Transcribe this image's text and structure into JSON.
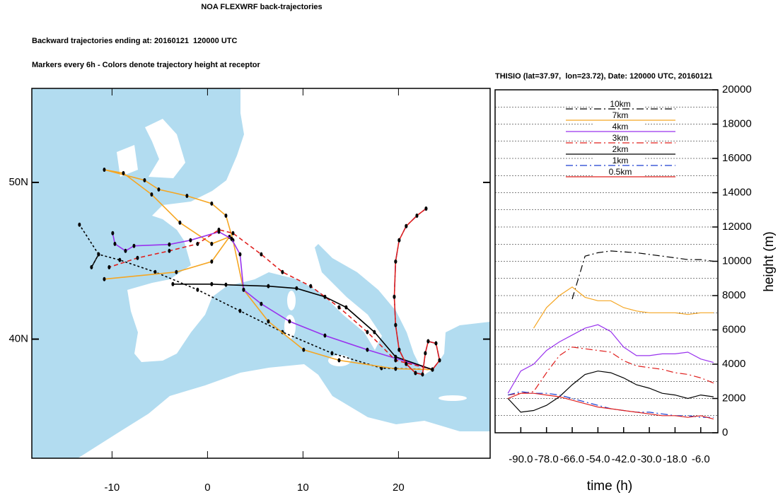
{
  "chart_data": [
    {
      "type": "trajectory-map",
      "title": "NOA FLEXWRF back-trajectories",
      "subtitle": "Backward trajectories ending at: 20160121  120000 UTC",
      "note": "Markers every 6h - Colors denote trajectory height at receptor",
      "xlim": [
        -18.4,
        29.6
      ],
      "ylim": [
        32.4,
        56
      ],
      "xticks": [
        -10,
        0,
        10,
        20
      ],
      "yticks": [
        {
          "value": 40,
          "label": "40N"
        },
        {
          "value": 50,
          "label": "50N"
        }
      ],
      "series": [
        {
          "color": "#000000",
          "dash": "dotted",
          "x": [
            23.56,
            18.22,
            13.04,
            7.85,
            3.41,
            -1.04,
            -5.48,
            -9.19,
            -11.41,
            -12.15,
            -11.41,
            -13.41
          ],
          "y": [
            38.06,
            38.15,
            39.1,
            40.45,
            41.8,
            43.15,
            44.28,
            45.05,
            45.41,
            44.59,
            45.41,
            47.3
          ]
        },
        {
          "color": "#f5a623",
          "dash": "solid",
          "x": [
            23.56,
            19.7,
            13.78,
            10.07,
            6.37,
            3.78,
            2.67,
            1.93,
            0.44,
            -2.15,
            -5.11,
            -6.59,
            -10.81,
            -8.81,
            -5.85,
            -2.89,
            0.44,
            2.3,
            0.44,
            -3.26,
            -10.81
          ],
          "y": [
            38.06,
            38.11,
            38.65,
            39.32,
            41.13,
            43.15,
            46.31,
            47.88,
            48.65,
            49.14,
            49.55,
            50.14,
            50.81,
            50.59,
            49.23,
            47.43,
            46.08,
            46.53,
            44.95,
            44.28,
            43.83
          ]
        },
        {
          "color": "#9933ee",
          "dash": "solid",
          "x": [
            23.56,
            16.74,
            12.3,
            8.59,
            5.63,
            3.78,
            3.41,
            2.52,
            1.19,
            -1.78,
            -4.0,
            -7.7,
            -8.59,
            -9.7,
            -9.93
          ],
          "y": [
            38.06,
            39.32,
            40.23,
            41.13,
            42.25,
            43.15,
            45.41,
            46.4,
            46.85,
            46.31,
            46.04,
            45.95,
            45.63,
            46.08,
            46.76
          ]
        },
        {
          "color": "#e0201e",
          "dash": "dashed",
          "x": [
            23.56,
            19.7,
            16.74,
            13.78,
            10.81,
            7.85,
            5.63,
            2.67,
            1.19,
            -1.04,
            -4.0,
            -7.33,
            -10.3
          ],
          "y": [
            38.06,
            38.65,
            40.45,
            42.03,
            43.38,
            44.28,
            45.41,
            46.76,
            46.98,
            46.08,
            45.63,
            45.18,
            44.59
          ]
        },
        {
          "color": "#000000",
          "dash": "solid",
          "x": [
            23.56,
            19.7,
            17.48,
            14.52,
            12.3,
            9.33,
            6.37,
            1.93,
            0.44,
            -3.63
          ],
          "y": [
            38.06,
            38.87,
            40.45,
            42.03,
            42.7,
            43.24,
            43.38,
            43.47,
            43.51,
            43.51
          ]
        },
        {
          "color": "#1a3fd0",
          "dash": "dashdot",
          "x": [
            23.56,
            24.3,
            23.93,
            23.11,
            22.81,
            22.52,
            21.78,
            20.81,
            20.07,
            19.7,
            19.56,
            19.7,
            20.07,
            20.81,
            21.93,
            22.89
          ],
          "y": [
            38.06,
            38.65,
            39.73,
            39.86,
            39.1,
            37.75,
            37.84,
            38.42,
            39.32,
            40.9,
            42.7,
            44.95,
            46.31,
            47.21,
            47.88,
            48.33
          ]
        },
        {
          "color": "#e0201e",
          "dash": "solid",
          "x": [
            23.56,
            24.3,
            23.93,
            23.11,
            22.81,
            22.52,
            21.78,
            20.81,
            20.07,
            19.7,
            19.56,
            19.7,
            20.07,
            20.81,
            21.93,
            22.89
          ],
          "y": [
            38.06,
            38.65,
            39.73,
            39.86,
            39.1,
            37.75,
            37.84,
            38.42,
            39.32,
            40.9,
            42.7,
            44.95,
            46.31,
            47.21,
            47.88,
            48.33
          ]
        }
      ]
    },
    {
      "type": "line",
      "title": "THISIO (lat=37.97,  lon=23.72), Date: 120000 UTC, 20160121",
      "xlabel": "time (h)",
      "ylabel": "height (m)",
      "xlim": [
        -102,
        2
      ],
      "ylim": [
        0,
        20000
      ],
      "xticks": [
        {
          "value": -90,
          "label": "-90.0"
        },
        {
          "value": -78,
          "label": "-78.0"
        },
        {
          "value": -66,
          "label": "-66.0"
        },
        {
          "value": -54,
          "label": "-54.0"
        },
        {
          "value": -42,
          "label": "-42.0"
        },
        {
          "value": -30,
          "label": "-30.0"
        },
        {
          "value": -18,
          "label": "-18.0"
        },
        {
          "value": -6,
          "label": "-6.0"
        }
      ],
      "yticks": [
        0,
        2000,
        4000,
        6000,
        8000,
        10000,
        12000,
        14000,
        16000,
        18000,
        20000
      ],
      "minor_grid": [
        1000,
        3000,
        5000,
        7000,
        9000,
        11000,
        13000,
        15000,
        17000,
        19000
      ],
      "x": [
        -96,
        -90,
        -84,
        -78,
        -72,
        -66,
        -60,
        -54,
        -48,
        -42,
        -36,
        -30,
        -24,
        -18,
        -12,
        -6,
        0
      ],
      "series": [
        {
          "name": "10km",
          "color": "#000000",
          "dash": "dashdot",
          "values": [
            null,
            null,
            null,
            null,
            null,
            7800,
            10300,
            10500,
            10600,
            10550,
            10500,
            10400,
            10300,
            10200,
            10100,
            10100,
            10000
          ]
        },
        {
          "name": "7km",
          "color": "#f5a623",
          "dash": "solid",
          "values": [
            null,
            null,
            6100,
            7300,
            8000,
            8500,
            7900,
            7700,
            7700,
            7300,
            7100,
            7000,
            7000,
            7000,
            6900,
            7000,
            7000
          ]
        },
        {
          "name": "4km",
          "color": "#9933ee",
          "dash": "solid",
          "values": [
            2300,
            3600,
            4000,
            4800,
            5300,
            5700,
            6100,
            6300,
            5900,
            5000,
            4500,
            4500,
            4600,
            4600,
            4700,
            4300,
            4100
          ]
        },
        {
          "name": "3km",
          "color": "#e0201e",
          "dash": "dashdot",
          "values": [
            2200,
            2300,
            2400,
            3500,
            4500,
            5000,
            4900,
            4800,
            4700,
            4200,
            3900,
            3800,
            3700,
            3500,
            3400,
            3200,
            2900
          ]
        },
        {
          "name": "2km",
          "color": "#000000",
          "dash": "solid",
          "values": [
            2000,
            1200,
            1300,
            1600,
            2100,
            2800,
            3400,
            3600,
            3500,
            3200,
            2800,
            2600,
            2300,
            2200,
            2000,
            2200,
            2100
          ]
        },
        {
          "name": "1km",
          "color": "#1a3fd0",
          "dash": "dashdot",
          "values": [
            2200,
            2400,
            2300,
            2300,
            2200,
            2000,
            1800,
            1600,
            1400,
            1300,
            1200,
            1200,
            1100,
            1000,
            1000,
            900,
            900
          ]
        },
        {
          "name": "0.5km",
          "color": "#e0201e",
          "dash": "solid",
          "values": [
            2000,
            2300,
            2300,
            2200,
            2100,
            1900,
            1700,
            1500,
            1400,
            1300,
            1200,
            1100,
            1000,
            1000,
            900,
            1000,
            800
          ]
        }
      ]
    }
  ]
}
